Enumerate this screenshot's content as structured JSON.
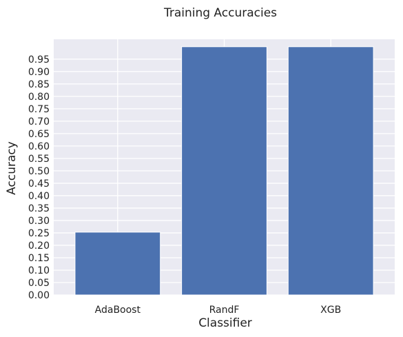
{
  "chart_data": {
    "type": "bar",
    "title": "Training Accuracies",
    "xlabel": "Classifier",
    "ylabel": "Accuracy",
    "categories": [
      "AdaBoost",
      "RandF",
      "XGB"
    ],
    "values": [
      0.253,
      1.0,
      1.0
    ],
    "ylim": [
      0,
      1.03
    ],
    "yticks": [
      "0.00",
      "0.05",
      "0.10",
      "0.15",
      "0.20",
      "0.25",
      "0.30",
      "0.35",
      "0.40",
      "0.45",
      "0.50",
      "0.55",
      "0.60",
      "0.65",
      "0.70",
      "0.75",
      "0.80",
      "0.85",
      "0.90",
      "0.95"
    ],
    "grid": true,
    "colors": {
      "bar": "#4c72b0",
      "plot_background": "#eaeaf2",
      "grid": "#ffffff"
    }
  }
}
